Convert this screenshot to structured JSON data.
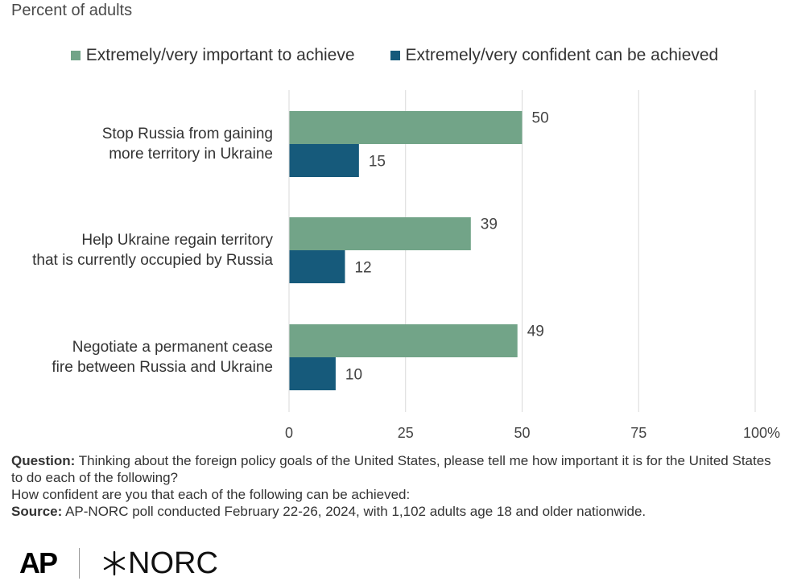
{
  "chart_data": {
    "type": "bar",
    "orientation": "horizontal",
    "subtitle": "Percent of adults",
    "categories": [
      [
        "Stop Russia from gaining",
        "more territory in Ukraine"
      ],
      [
        "Help Ukraine regain territory",
        "that is currently occupied by Russia"
      ],
      [
        "Negotiate a permanent cease",
        "fire between Russia and Ukraine"
      ]
    ],
    "series": [
      {
        "name": "Extremely/very important to achieve",
        "color": "#72a488",
        "values": [
          50,
          39,
          49
        ]
      },
      {
        "name": "Extremely/very confident can be achieved",
        "color": "#165a7b",
        "values": [
          15,
          12,
          10
        ]
      }
    ],
    "xlim": [
      0,
      100
    ],
    "xticks": [
      "0",
      "25",
      "50",
      "75",
      "100%"
    ],
    "xtick_values": [
      0,
      25,
      50,
      75,
      100
    ],
    "grid": true,
    "legend_position": "top"
  },
  "notes": {
    "question_label": "Question:",
    "question_text": " Thinking about the foreign policy goals of the United States, please tell me how important it is for the United States to do each of the following?",
    "question_line2": "How confident are you that each of the following can be achieved:",
    "source_label": "Source:",
    "source_text": " AP-NORC poll conducted February 22-26, 2024, with 1,102 adults age 18 and older nationwide."
  },
  "logos": {
    "ap": "AP",
    "norc": "NORC"
  }
}
